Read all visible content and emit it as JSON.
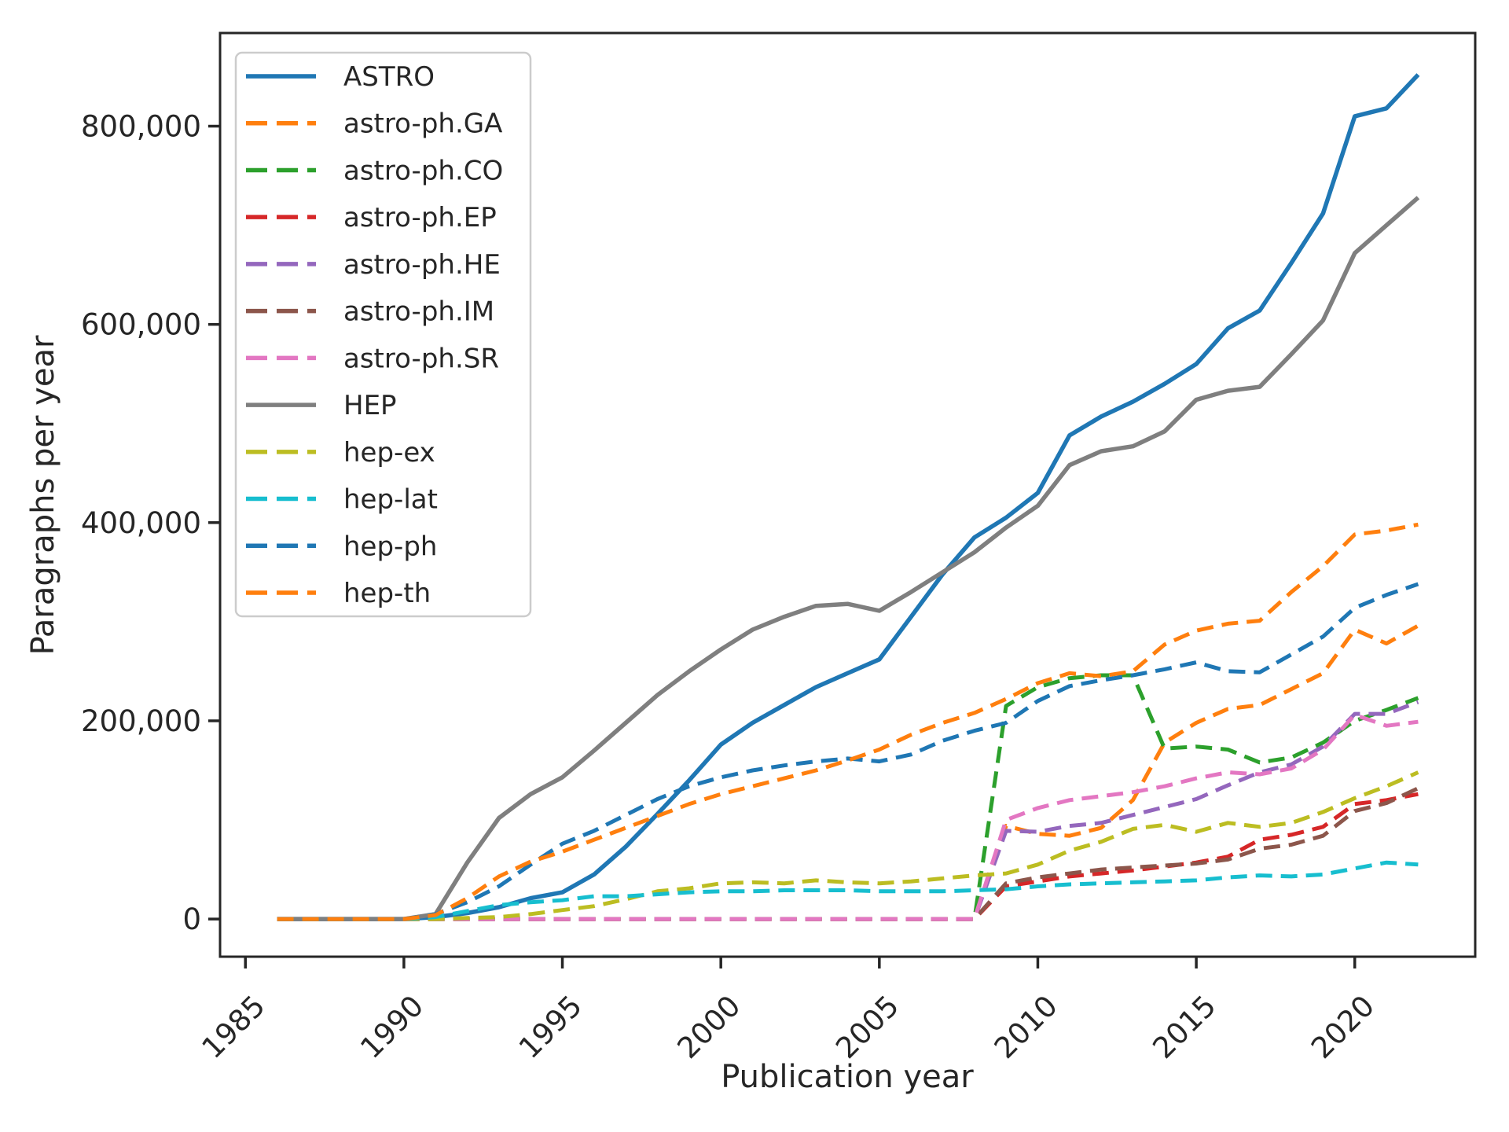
{
  "chart_data": {
    "type": "line",
    "title": "",
    "xlabel": "Publication year",
    "ylabel": "Paragraphs per year",
    "grid": false,
    "legend_position": "upper left",
    "background_color": "#ffffff",
    "text_color": "#262626",
    "xlim": [
      1984.2,
      2023.8
    ],
    "ylim": [
      -38000,
      894000
    ],
    "xticks": [
      1985,
      1990,
      1995,
      2000,
      2005,
      2010,
      2015,
      2020
    ],
    "xtick_labels": [
      "1985",
      "1990",
      "1995",
      "2000",
      "2005",
      "2010",
      "2015",
      "2020"
    ],
    "yticks": [
      0,
      200000,
      400000,
      600000,
      800000
    ],
    "ytick_labels": [
      "0",
      "200,000",
      "400,000",
      "600,000",
      "800,000"
    ],
    "x_years": [
      1986,
      1987,
      1988,
      1989,
      1990,
      1991,
      1992,
      1993,
      1994,
      1995,
      1996,
      1997,
      1998,
      1999,
      2000,
      2001,
      2002,
      2003,
      2004,
      2005,
      2006,
      2007,
      2008,
      2009,
      2010,
      2011,
      2012,
      2013,
      2014,
      2015,
      2016,
      2017,
      2018,
      2019,
      2020,
      2021,
      2022
    ],
    "series": [
      {
        "name": "ASTRO",
        "color": "#1f77b4",
        "style": "solid",
        "values": [
          0,
          0,
          0,
          0,
          0,
          2000,
          6000,
          12000,
          21000,
          27000,
          45000,
          73000,
          106000,
          140000,
          176000,
          198000,
          216000,
          234000,
          248000,
          262000,
          305000,
          348000,
          385000,
          405000,
          430000,
          488000,
          507000,
          522000,
          540000,
          560000,
          596000,
          614000,
          662000,
          712000,
          810000,
          818000,
          852000
        ]
      },
      {
        "name": "astro-ph.GA",
        "color": "#ff7f0e",
        "style": "dashed",
        "values": [
          0,
          0,
          0,
          0,
          0,
          0,
          0,
          0,
          0,
          0,
          0,
          0,
          0,
          0,
          0,
          0,
          0,
          0,
          0,
          0,
          0,
          0,
          0,
          94000,
          86000,
          84000,
          92000,
          120000,
          178000,
          198000,
          212000,
          216000,
          232000,
          248000,
          292000,
          278000,
          296000
        ]
      },
      {
        "name": "astro-ph.CO",
        "color": "#2ca02c",
        "style": "dashed",
        "values": [
          0,
          0,
          0,
          0,
          0,
          0,
          0,
          0,
          0,
          0,
          0,
          0,
          0,
          0,
          0,
          0,
          0,
          0,
          0,
          0,
          0,
          0,
          0,
          215000,
          234000,
          243000,
          246000,
          246000,
          172000,
          174000,
          171000,
          158000,
          163000,
          178000,
          200000,
          211000,
          223000
        ]
      },
      {
        "name": "astro-ph.EP",
        "color": "#d62728",
        "style": "dashed",
        "values": [
          0,
          0,
          0,
          0,
          0,
          0,
          0,
          0,
          0,
          0,
          0,
          0,
          0,
          0,
          0,
          0,
          0,
          0,
          0,
          0,
          0,
          0,
          0,
          33000,
          38000,
          43000,
          46000,
          49000,
          53000,
          57000,
          63000,
          80000,
          85000,
          93000,
          116000,
          120000,
          126000
        ]
      },
      {
        "name": "astro-ph.HE",
        "color": "#9467bd",
        "style": "dashed",
        "values": [
          0,
          0,
          0,
          0,
          0,
          0,
          0,
          0,
          0,
          0,
          0,
          0,
          0,
          0,
          0,
          0,
          0,
          0,
          0,
          0,
          0,
          0,
          0,
          89000,
          88000,
          94000,
          97000,
          105000,
          113000,
          121000,
          135000,
          148000,
          156000,
          174000,
          207000,
          207000,
          219000
        ]
      },
      {
        "name": "astro-ph.IM",
        "color": "#8c564b",
        "style": "dashed",
        "values": [
          0,
          0,
          0,
          0,
          0,
          0,
          0,
          0,
          0,
          0,
          0,
          0,
          0,
          0,
          0,
          0,
          0,
          0,
          0,
          0,
          0,
          0,
          0,
          36000,
          42000,
          46000,
          50000,
          52000,
          54000,
          56000,
          60000,
          71000,
          75000,
          84000,
          109000,
          117000,
          132000
        ]
      },
      {
        "name": "astro-ph.SR",
        "color": "#e377c2",
        "style": "dashed",
        "values": [
          0,
          0,
          0,
          0,
          0,
          0,
          0,
          0,
          0,
          0,
          0,
          0,
          0,
          0,
          0,
          0,
          0,
          0,
          0,
          0,
          0,
          0,
          0,
          100000,
          112000,
          120000,
          124000,
          128000,
          134000,
          142000,
          148000,
          146000,
          152000,
          171000,
          206000,
          195000,
          199000
        ]
      },
      {
        "name": "HEP",
        "color": "#7f7f7f",
        "style": "solid",
        "values": [
          0,
          0,
          0,
          0,
          0,
          5000,
          57000,
          102000,
          126000,
          143000,
          170000,
          198000,
          226000,
          250000,
          272000,
          292000,
          305000,
          316000,
          318000,
          311000,
          330000,
          350000,
          370000,
          395000,
          417000,
          458000,
          472000,
          477000,
          492000,
          524000,
          533000,
          537000,
          570000,
          604000,
          672000,
          700000,
          728000
        ]
      },
      {
        "name": "hep-ex",
        "color": "#bcbd22",
        "style": "dashed",
        "values": [
          0,
          0,
          0,
          0,
          0,
          0,
          1000,
          2000,
          5000,
          9000,
          13000,
          20000,
          28000,
          31000,
          36000,
          37000,
          36000,
          39000,
          37000,
          36000,
          38000,
          41000,
          44000,
          46000,
          55000,
          69000,
          78000,
          91000,
          95000,
          88000,
          97000,
          93000,
          97000,
          108000,
          122000,
          134000,
          148000
        ]
      },
      {
        "name": "hep-lat",
        "color": "#17becf",
        "style": "dashed",
        "values": [
          0,
          0,
          0,
          0,
          0,
          2000,
          8000,
          14000,
          17000,
          19000,
          23000,
          23000,
          25000,
          27000,
          28000,
          28000,
          29000,
          29000,
          29000,
          28000,
          28000,
          28000,
          29000,
          30000,
          33000,
          35000,
          36000,
          37000,
          38000,
          39000,
          42000,
          44000,
          43000,
          45000,
          51000,
          57000,
          55000
        ]
      },
      {
        "name": "hep-ph",
        "color": "#1f77b4",
        "style": "dashed",
        "values": [
          0,
          0,
          0,
          0,
          0,
          5000,
          17000,
          33000,
          55000,
          76000,
          89000,
          105000,
          121000,
          134000,
          143000,
          150000,
          155000,
          159000,
          162000,
          159000,
          166000,
          180000,
          190000,
          198000,
          220000,
          235000,
          241000,
          246000,
          252000,
          259000,
          250000,
          249000,
          267000,
          285000,
          314000,
          327000,
          338000
        ]
      },
      {
        "name": "hep-th",
        "color": "#ff7f0e",
        "style": "dashed",
        "values": [
          0,
          0,
          0,
          0,
          0,
          4000,
          21000,
          43000,
          58000,
          68000,
          80000,
          92000,
          104000,
          116000,
          126000,
          134000,
          142000,
          150000,
          160000,
          171000,
          186000,
          198000,
          208000,
          222000,
          238000,
          248000,
          245000,
          250000,
          277000,
          291000,
          298000,
          301000,
          330000,
          356000,
          388000,
          392000,
          398000
        ]
      }
    ]
  }
}
